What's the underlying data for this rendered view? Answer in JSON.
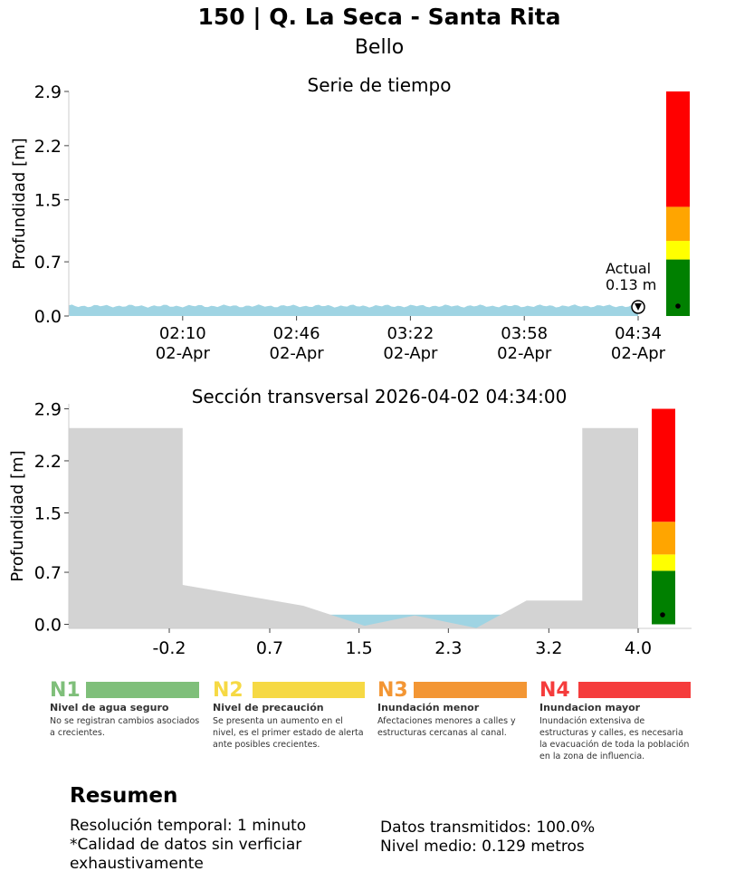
{
  "header": {
    "title": "150 | Q. La Seca - Santa Rita",
    "subtitle": "Bello"
  },
  "colors": {
    "water": "#9fd4e3",
    "terrain": "#d3d3d3",
    "level_green": "#008000",
    "level_yellow": "#ffff00",
    "level_orange": "#ffa500",
    "level_red": "#ff0000"
  },
  "chart_data": [
    {
      "type": "area",
      "title": "Serie de tiempo",
      "ylabel": "Profundidad [m]",
      "ylim": [
        0,
        2.9
      ],
      "yticks": [
        "0.0",
        "0.7",
        "1.5",
        "2.2",
        "2.9"
      ],
      "xticks": [
        {
          "time": "02:10",
          "date": "02-Apr"
        },
        {
          "time": "02:46",
          "date": "02-Apr"
        },
        {
          "time": "03:22",
          "date": "02-Apr"
        },
        {
          "time": "03:58",
          "date": "02-Apr"
        },
        {
          "time": "04:34",
          "date": "02-Apr"
        }
      ],
      "series": [
        {
          "x_start": "01:34",
          "x_end": "04:34",
          "resolution_min": 1,
          "mean_depth": 0.129,
          "current_depth": 0.13
        }
      ],
      "annotation": {
        "label": "Actual",
        "value_text": "0.13 m"
      },
      "level_bar": [
        {
          "level": "N1",
          "from": 0,
          "to": 0.73
        },
        {
          "level": "N2",
          "from": 0.73,
          "to": 0.97
        },
        {
          "level": "N3",
          "from": 0.97,
          "to": 1.41
        },
        {
          "level": "N4",
          "from": 1.41,
          "to": 2.9
        }
      ]
    },
    {
      "type": "area",
      "title": "Sección transversal 2026-04-02 04:34:00",
      "ylabel": "Profundidad [m]",
      "ylim": [
        0,
        2.9
      ],
      "xlim": [
        -1.1,
        4.0
      ],
      "xticks": [
        "-0.2",
        "0.7",
        "1.5",
        "2.3",
        "3.2",
        "4.0"
      ],
      "yticks": [
        "0.0",
        "0.7",
        "1.5",
        "2.2",
        "2.9"
      ],
      "terrain_profile": {
        "x": [
          -1.1,
          -0.08,
          -0.08,
          1.0,
          1.55,
          2.0,
          2.55,
          3.0,
          3.5,
          3.5,
          4.0
        ],
        "y": [
          2.64,
          2.64,
          0.53,
          0.25,
          -0.02,
          0.12,
          -0.05,
          0.32,
          0.32,
          2.64,
          2.64
        ]
      },
      "water_level": 0.13,
      "level_bar": [
        {
          "level": "N1",
          "from": 0,
          "to": 0.72
        },
        {
          "level": "N2",
          "from": 0.72,
          "to": 0.94
        },
        {
          "level": "N3",
          "from": 0.94,
          "to": 1.38
        },
        {
          "level": "N4",
          "from": 1.38,
          "to": 2.9
        }
      ]
    }
  ],
  "legend": [
    {
      "code": "N1",
      "color": "#7fbf7a",
      "name": "Nivel de agua seguro",
      "desc": "No se registran cambios asociados a crecientes."
    },
    {
      "code": "N2",
      "color": "#f6d944",
      "name": "Nivel de precaución",
      "desc": "Se presenta un aumento en el nivel, es el primer estado de alerta ante posibles crecientes."
    },
    {
      "code": "N3",
      "color": "#f39634",
      "name": "Inundación menor",
      "desc": "Afectaciones menores a calles y estructuras cercanas al canal."
    },
    {
      "code": "N4",
      "color": "#f53c3c",
      "name": "Inundacion mayor",
      "desc": "Inundación extensiva de estructuras y calles, es necesaria la evacuación de toda la población en la zona de influencia."
    }
  ],
  "summary": {
    "title": "Resumen",
    "left_text": "Resolución temporal: 1 minuto\n*Calidad de datos sin verficiar\nexhaustivamente",
    "right_text": "Datos transmitidos: 100.0%\nNivel medio: 0.129 metros"
  }
}
